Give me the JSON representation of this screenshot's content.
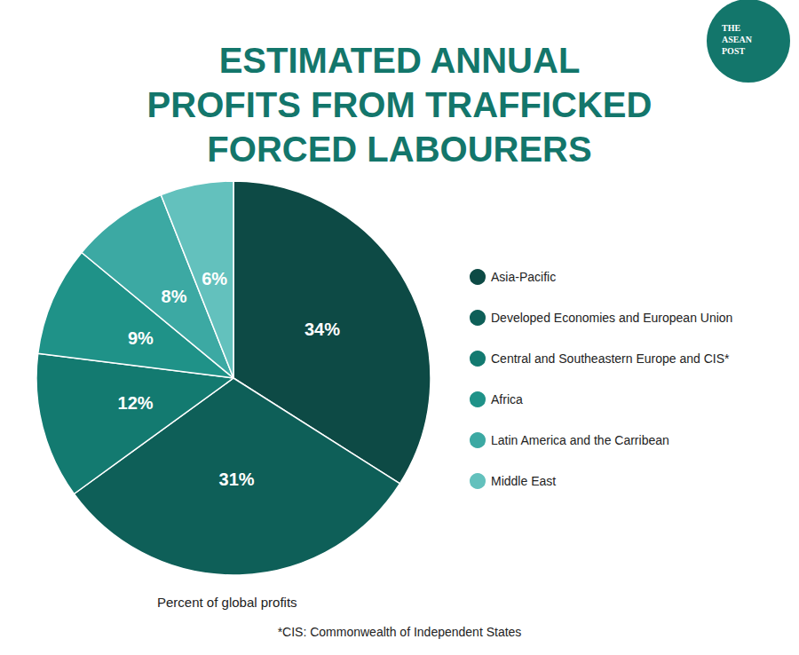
{
  "chart_data": {
    "type": "pie",
    "title": "ESTIMATED ANNUAL\nPROFITS FROM TRAFFICKED\nFORCED LABOURERS",
    "caption": "Percent of global profits",
    "footnote": "*CIS: Commonwealth of Independent States",
    "logo": [
      "THE",
      "ASEAN",
      "POST"
    ],
    "categories": [
      "Asia-Pacific",
      "Developed Economies and European Union",
      "Central and Southeastern Europe and CIS*",
      "Africa",
      "Latin America and the Carribean",
      "Middle East"
    ],
    "values": [
      34,
      31,
      12,
      9,
      8,
      6
    ],
    "value_labels": [
      "34%",
      "31%",
      "12%",
      "9%",
      "8%",
      "6%"
    ],
    "colors": [
      "#0d4a45",
      "#0e5f58",
      "#137a70",
      "#1f9288",
      "#3ca9a3",
      "#63c1bd"
    ],
    "data_labels": true,
    "legend": "right"
  }
}
